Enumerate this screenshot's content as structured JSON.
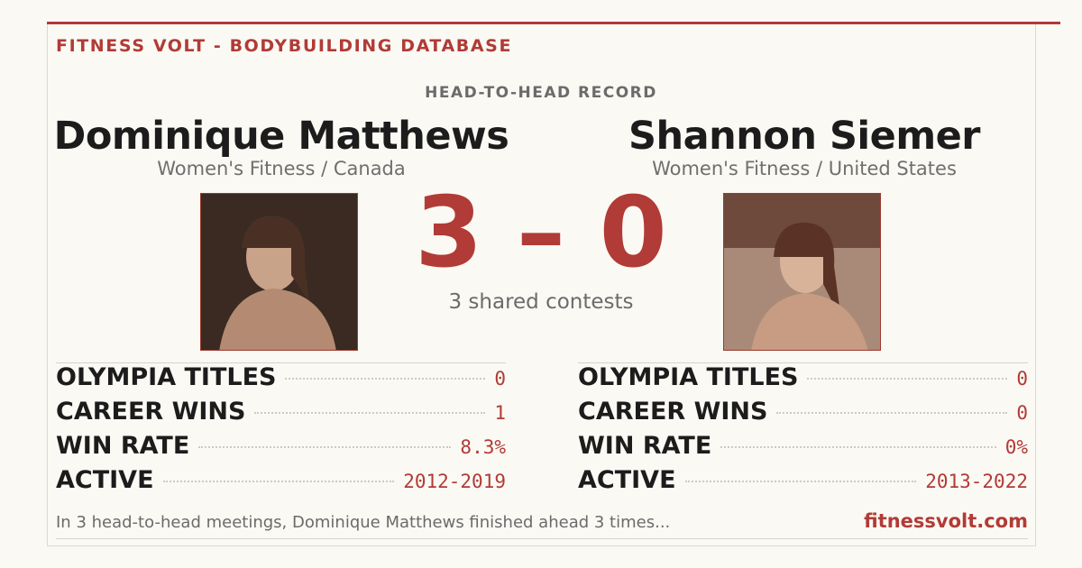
{
  "brand": "FITNESS VOLT - BODYBUILDING DATABASE",
  "section_label": "HEAD-TO-HEAD RECORD",
  "athletes": [
    {
      "name": "Dominique Matthews",
      "subtitle": "Women's Fitness / Canada",
      "stats": [
        {
          "label": "OLYMPIA TITLES",
          "value": "0"
        },
        {
          "label": "CAREER WINS",
          "value": "1"
        },
        {
          "label": "WIN RATE",
          "value": "8.3%"
        },
        {
          "label": "ACTIVE",
          "value": "2012-2019"
        }
      ]
    },
    {
      "name": "Shannon Siemer",
      "subtitle": "Women's Fitness / United States",
      "stats": [
        {
          "label": "OLYMPIA TITLES",
          "value": "0"
        },
        {
          "label": "CAREER WINS",
          "value": "0"
        },
        {
          "label": "WIN RATE",
          "value": "0%"
        },
        {
          "label": "ACTIVE",
          "value": "2013-2022"
        }
      ]
    }
  ],
  "score": {
    "left": 3,
    "separator": "–",
    "right": 0
  },
  "shared": "3 shared contests",
  "footer": {
    "summary": "In 3 head-to-head meetings, Dominique Matthews finished ahead 3 times...",
    "site": "fitnessvolt.com"
  }
}
